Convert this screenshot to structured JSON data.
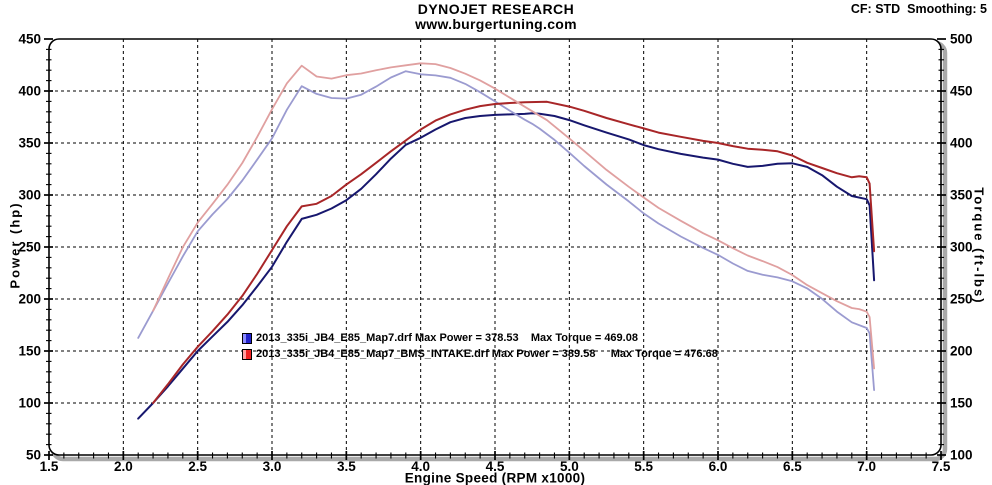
{
  "header": {
    "title": "DYNOJET RESEARCH",
    "subtitle": "www.burgertuning.com",
    "correction_info": "CF: STD  Smoothing: 5"
  },
  "chart_data": {
    "type": "line",
    "title": "DYNOJET RESEARCH",
    "xlabel": "Engine Speed (RPM x1000)",
    "ylabel_left": "Power (hp)",
    "ylabel_right": "Torque (ft-lbs)",
    "x_range": [
      1.5,
      7.5
    ],
    "y_left_range": [
      50,
      450
    ],
    "y_right_range": [
      100,
      500
    ],
    "x_major_step": 0.5,
    "x_minor_step": 0.1,
    "y_major_step": 50,
    "y_minor_step": 10,
    "grid": "dashed",
    "x_ticks": [
      "1.5",
      "2.0",
      "2.5",
      "3.0",
      "3.5",
      "4.0",
      "4.5",
      "5.0",
      "5.5",
      "6.0",
      "6.5",
      "7.0",
      "7.5"
    ],
    "y_left_ticks": [
      "50",
      "100",
      "150",
      "200",
      "250",
      "300",
      "350",
      "400",
      "450"
    ],
    "y_right_ticks": [
      "100",
      "150",
      "200",
      "250",
      "300",
      "350",
      "400",
      "450",
      "500"
    ],
    "legend": [
      {
        "file": "2013_335i_JB4_E85_Map7.drf",
        "max_power": 378.53,
        "max_torque": 469.08,
        "label": "2013_335i_JB4_E85_Map7.drf Max Power = 378.53    Max Torque = 469.08",
        "swatch_fill": "#2222cc",
        "swatch_highlight": "#8c8cff"
      },
      {
        "file": "2013_335i_JB4_E85_Map7_BMS_INTAKE.drf",
        "max_power": 389.58,
        "max_torque": 476.68,
        "label": "2013_335i_JB4_E85_Map7_BMS_INTAKE.drf Max Power = 389.58     Max Torque = 476.68",
        "swatch_fill": "#ee2222",
        "swatch_highlight": "#ffa0a0"
      }
    ],
    "series": [
      {
        "id": "run1-power-curve",
        "name": "2013_335i_JB4_E85_Map7.drf Power (hp)",
        "axis": "left",
        "color": "#17176e",
        "width": 2.0,
        "points": [
          [
            2.1,
            85
          ],
          [
            2.2,
            100
          ],
          [
            2.3,
            116
          ],
          [
            2.4,
            133
          ],
          [
            2.5,
            150
          ],
          [
            2.6,
            164
          ],
          [
            2.7,
            178
          ],
          [
            2.8,
            194
          ],
          [
            2.9,
            212
          ],
          [
            3.0,
            231
          ],
          [
            3.1,
            255
          ],
          [
            3.2,
            277
          ],
          [
            3.3,
            281
          ],
          [
            3.4,
            287
          ],
          [
            3.5,
            295
          ],
          [
            3.6,
            306
          ],
          [
            3.7,
            320
          ],
          [
            3.8,
            335
          ],
          [
            3.9,
            348.3
          ],
          [
            4.0,
            355
          ],
          [
            4.1,
            363
          ],
          [
            4.2,
            370
          ],
          [
            4.3,
            374
          ],
          [
            4.4,
            376
          ],
          [
            4.5,
            377
          ],
          [
            4.6,
            377.5
          ],
          [
            4.7,
            378
          ],
          [
            4.75,
            378.53
          ],
          [
            4.8,
            378.2
          ],
          [
            4.9,
            376
          ],
          [
            5.0,
            372
          ],
          [
            5.1,
            367
          ],
          [
            5.25,
            360
          ],
          [
            5.4,
            353.5
          ],
          [
            5.5,
            348
          ],
          [
            5.6,
            344
          ],
          [
            5.75,
            339.5
          ],
          [
            5.9,
            336
          ],
          [
            6.0,
            334
          ],
          [
            6.1,
            330
          ],
          [
            6.2,
            327
          ],
          [
            6.3,
            328
          ],
          [
            6.4,
            330
          ],
          [
            6.5,
            330.5
          ],
          [
            6.6,
            327
          ],
          [
            6.7,
            319
          ],
          [
            6.8,
            308
          ],
          [
            6.9,
            299
          ],
          [
            7.0,
            296
          ],
          [
            7.02,
            290
          ],
          [
            7.05,
            218
          ]
        ]
      },
      {
        "id": "run1-torque-curve",
        "name": "2013_335i_JB4_E85_Map7.drf Torque (ft-lbs)",
        "axis": "right",
        "color": "#9b9bd0",
        "width": 1.8,
        "points": [
          [
            2.1,
            212.6
          ],
          [
            2.2,
            238.7
          ],
          [
            2.3,
            264.9
          ],
          [
            2.4,
            291.0
          ],
          [
            2.5,
            315.1
          ],
          [
            2.6,
            331.3
          ],
          [
            2.7,
            346.2
          ],
          [
            2.8,
            363.9
          ],
          [
            2.9,
            383.9
          ],
          [
            3.0,
            404.4
          ],
          [
            3.1,
            432.0
          ],
          [
            3.2,
            454.6
          ],
          [
            3.3,
            447.2
          ],
          [
            3.4,
            443.3
          ],
          [
            3.5,
            442.7
          ],
          [
            3.6,
            446.4
          ],
          [
            3.7,
            454.2
          ],
          [
            3.8,
            463.0
          ],
          [
            3.9,
            469.08
          ],
          [
            4.0,
            466.1
          ],
          [
            4.1,
            465.0
          ],
          [
            4.2,
            462.7
          ],
          [
            4.3,
            456.8
          ],
          [
            4.4,
            448.8
          ],
          [
            4.5,
            440.0
          ],
          [
            4.6,
            431.0
          ],
          [
            4.7,
            422.4
          ],
          [
            4.75,
            418.5
          ],
          [
            4.8,
            413.8
          ],
          [
            4.9,
            403.0
          ],
          [
            5.0,
            390.7
          ],
          [
            5.1,
            377.9
          ],
          [
            5.25,
            360.1
          ],
          [
            5.4,
            343.8
          ],
          [
            5.5,
            332.3
          ],
          [
            5.6,
            322.6
          ],
          [
            5.75,
            310.1
          ],
          [
            5.9,
            299.1
          ],
          [
            6.0,
            292.4
          ],
          [
            6.1,
            284.1
          ],
          [
            6.2,
            277.0
          ],
          [
            6.3,
            273.4
          ],
          [
            6.4,
            270.8
          ],
          [
            6.5,
            267.0
          ],
          [
            6.6,
            260.2
          ],
          [
            6.7,
            250.1
          ],
          [
            6.8,
            237.9
          ],
          [
            6.9,
            227.6
          ],
          [
            7.0,
            222.1
          ],
          [
            7.02,
            217.0
          ],
          [
            7.05,
            162.4
          ]
        ]
      },
      {
        "id": "run2-power-curve",
        "name": "2013_335i_JB4_E85_Map7_BMS_INTAKE.drf Power (hp)",
        "axis": "left",
        "color": "#a82628",
        "width": 2.0,
        "points": [
          [
            2.2,
            100
          ],
          [
            2.3,
            118
          ],
          [
            2.4,
            137
          ],
          [
            2.5,
            154
          ],
          [
            2.6,
            169
          ],
          [
            2.7,
            185
          ],
          [
            2.8,
            203
          ],
          [
            2.9,
            224
          ],
          [
            3.0,
            247
          ],
          [
            3.1,
            270
          ],
          [
            3.2,
            289
          ],
          [
            3.3,
            291.5
          ],
          [
            3.4,
            299
          ],
          [
            3.5,
            310
          ],
          [
            3.6,
            320
          ],
          [
            3.7,
            331
          ],
          [
            3.8,
            342
          ],
          [
            3.9,
            352.5
          ],
          [
            4.0,
            363
          ],
          [
            4.1,
            371.5
          ],
          [
            4.2,
            377.5
          ],
          [
            4.3,
            382
          ],
          [
            4.4,
            385.5
          ],
          [
            4.5,
            387.5
          ],
          [
            4.6,
            388.5
          ],
          [
            4.7,
            389.2
          ],
          [
            4.85,
            389.58
          ],
          [
            5.0,
            385
          ],
          [
            5.1,
            381
          ],
          [
            5.25,
            374
          ],
          [
            5.4,
            368
          ],
          [
            5.5,
            364
          ],
          [
            5.6,
            360
          ],
          [
            5.75,
            356
          ],
          [
            5.9,
            352
          ],
          [
            6.0,
            350
          ],
          [
            6.1,
            347
          ],
          [
            6.2,
            344.5
          ],
          [
            6.3,
            343.5
          ],
          [
            6.4,
            342
          ],
          [
            6.5,
            338
          ],
          [
            6.6,
            331
          ],
          [
            6.7,
            326
          ],
          [
            6.8,
            321
          ],
          [
            6.9,
            317
          ],
          [
            6.95,
            318
          ],
          [
            7.0,
            317
          ],
          [
            7.02,
            311
          ],
          [
            7.05,
            246
          ]
        ]
      },
      {
        "id": "run2-torque-curve",
        "name": "2013_335i_JB4_E85_Map7_BMS_INTAKE.drf Torque (ft-lbs)",
        "axis": "right",
        "color": "#e0a0a0",
        "width": 1.8,
        "points": [
          [
            2.2,
            238.7
          ],
          [
            2.3,
            269.5
          ],
          [
            2.4,
            299.8
          ],
          [
            2.5,
            323.5
          ],
          [
            2.6,
            341.4
          ],
          [
            2.7,
            359.9
          ],
          [
            2.8,
            380.8
          ],
          [
            2.9,
            405.7
          ],
          [
            3.0,
            432.4
          ],
          [
            3.1,
            457.4
          ],
          [
            3.2,
            474.3
          ],
          [
            3.3,
            463.9
          ],
          [
            3.4,
            461.9
          ],
          [
            3.5,
            465.2
          ],
          [
            3.6,
            466.8
          ],
          [
            3.7,
            469.9
          ],
          [
            3.8,
            472.7
          ],
          [
            3.9,
            474.7
          ],
          [
            4.0,
            476.68
          ],
          [
            4.1,
            475.9
          ],
          [
            4.2,
            472.1
          ],
          [
            4.3,
            466.6
          ],
          [
            4.4,
            460.2
          ],
          [
            4.5,
            452.3
          ],
          [
            4.6,
            443.6
          ],
          [
            4.7,
            434.9
          ],
          [
            4.85,
            421.9
          ],
          [
            5.0,
            404.4
          ],
          [
            5.1,
            392.4
          ],
          [
            5.25,
            374.1
          ],
          [
            5.4,
            357.9
          ],
          [
            5.5,
            347.6
          ],
          [
            5.6,
            337.6
          ],
          [
            5.75,
            325.2
          ],
          [
            5.9,
            313.3
          ],
          [
            6.0,
            306.4
          ],
          [
            6.1,
            298.8
          ],
          [
            6.2,
            291.8
          ],
          [
            6.3,
            286.4
          ],
          [
            6.4,
            280.7
          ],
          [
            6.5,
            273.1
          ],
          [
            6.6,
            263.4
          ],
          [
            6.7,
            255.6
          ],
          [
            6.8,
            247.9
          ],
          [
            6.9,
            241.3
          ],
          [
            6.95,
            240.3
          ],
          [
            7.0,
            237.8
          ],
          [
            7.02,
            232.7
          ],
          [
            7.05,
            183.3
          ]
        ]
      }
    ]
  }
}
